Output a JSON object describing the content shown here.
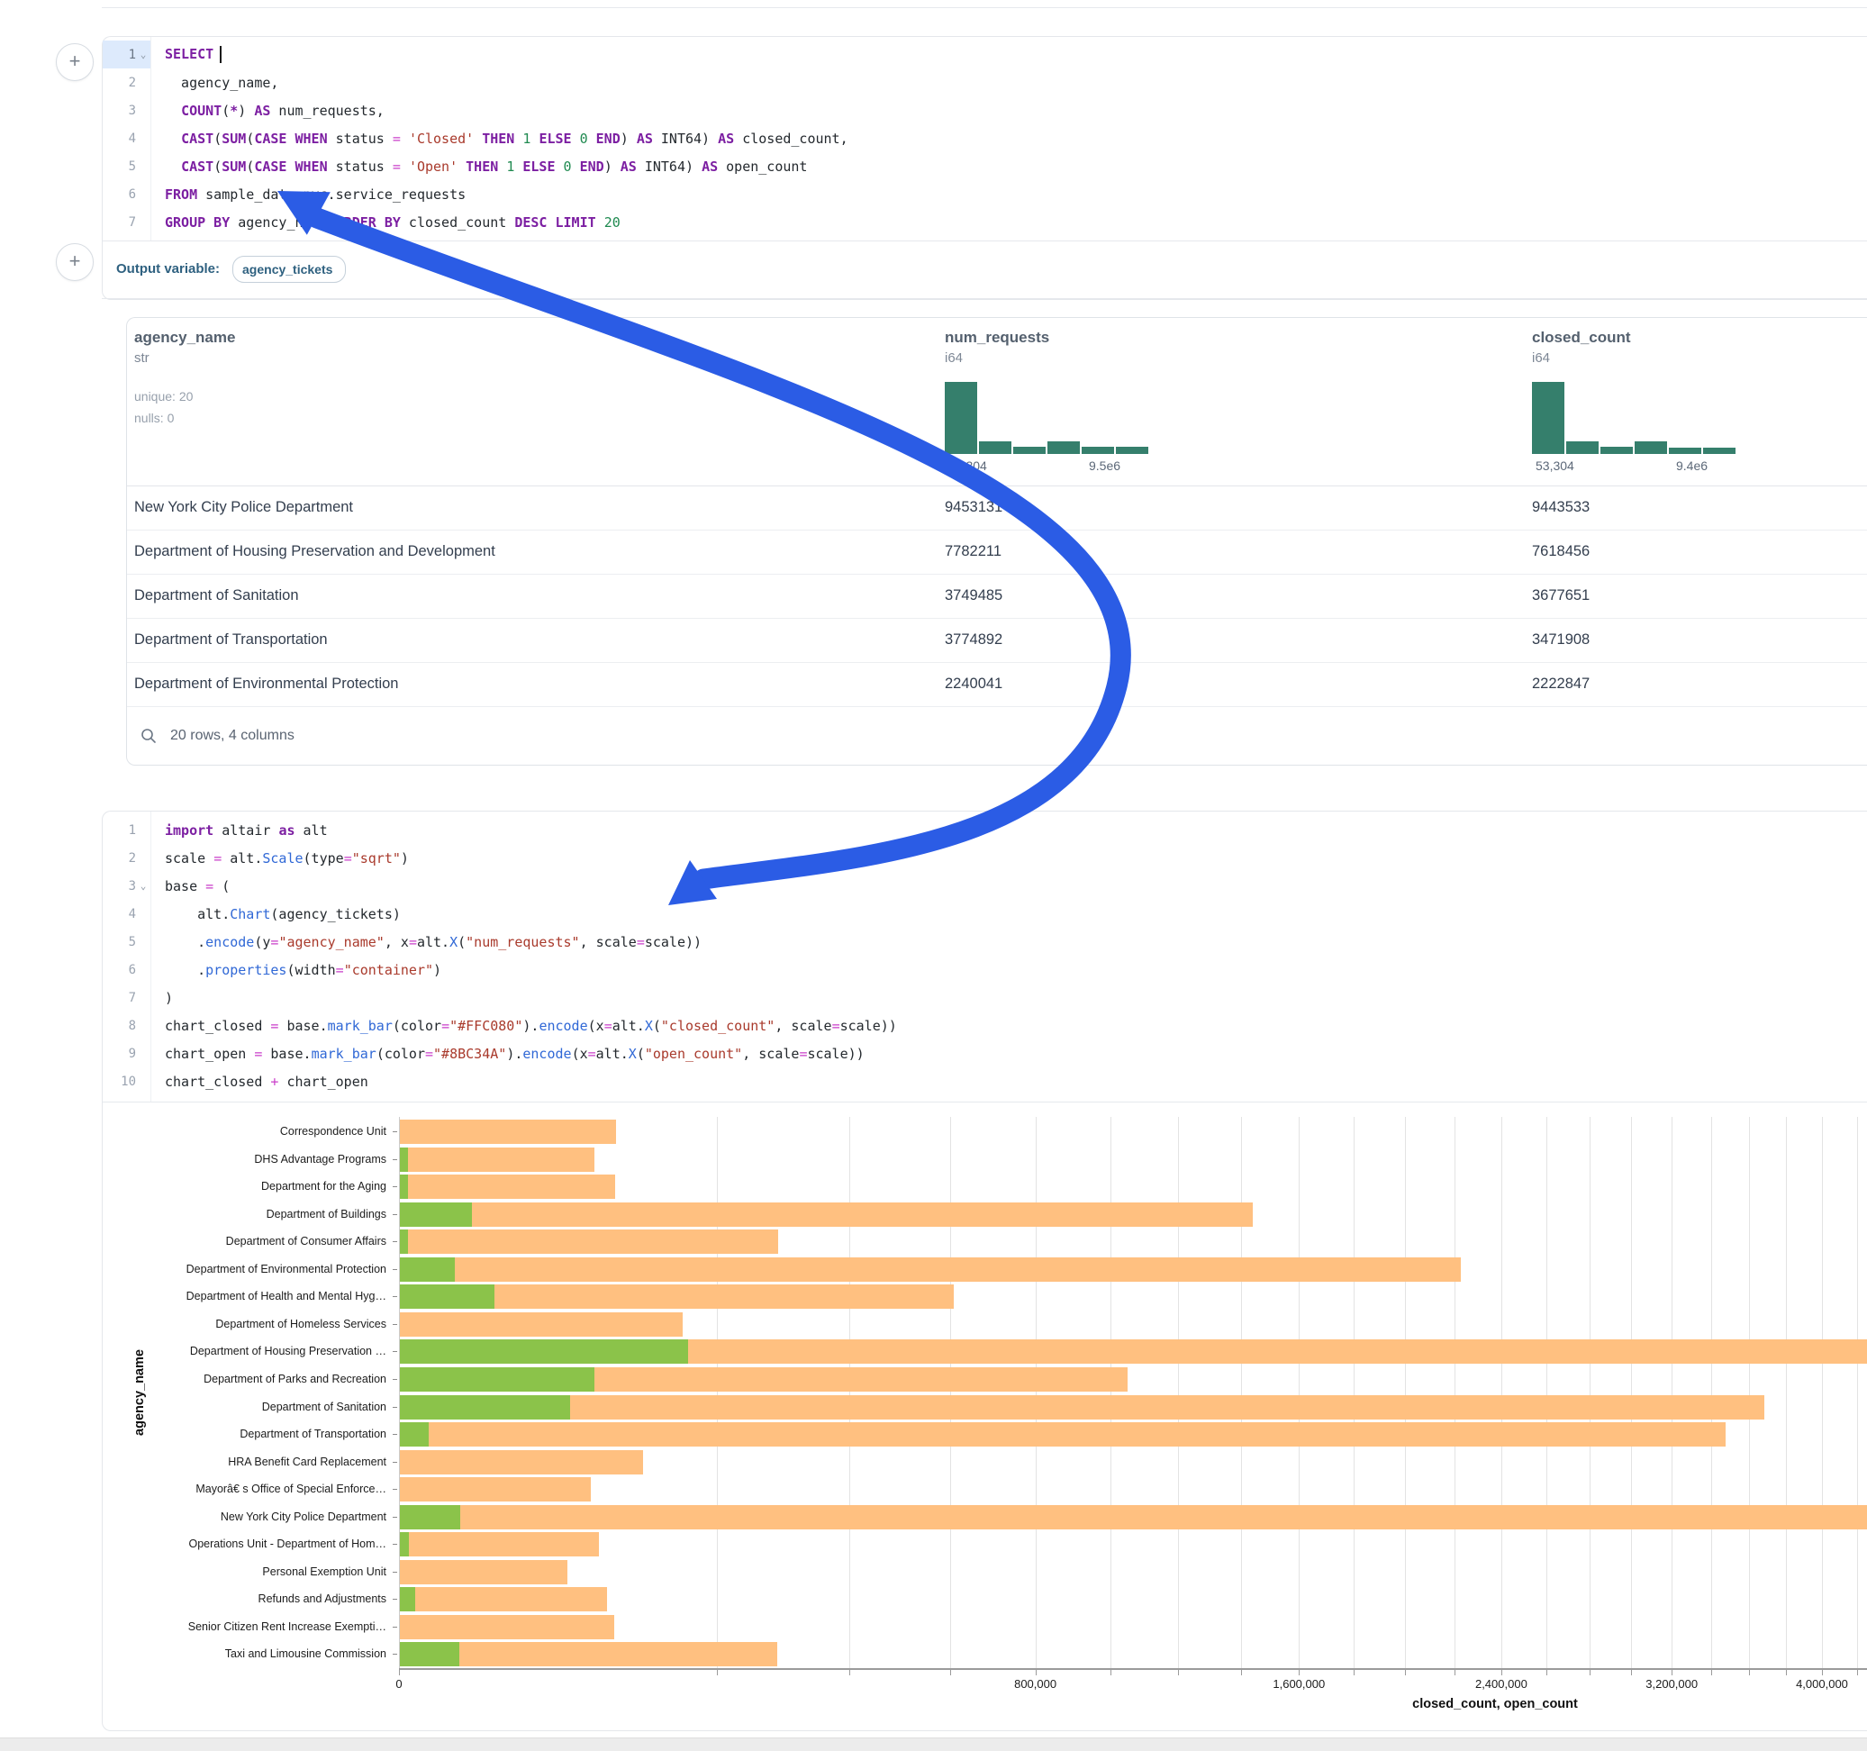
{
  "ui": {
    "add_cell_button": "+",
    "output_bar": {
      "label": "Output variable:",
      "pill": "agency_tickets"
    },
    "annotation_arrow_color": "#2b5ce5",
    "code_colors": {
      "keyword": "#7c1fa2",
      "operator": "#c93ec9",
      "string": "#a93a2c",
      "number": "#1f8a50",
      "function": "#3068d6",
      "plain": "#24292e"
    }
  },
  "sql_cell": {
    "lines": [
      {
        "n": "1",
        "fold": true,
        "active": true,
        "tokens": [
          {
            "c": "kw",
            "t": "SELECT"
          },
          {
            "c": "caret",
            "t": ""
          }
        ]
      },
      {
        "n": "2",
        "tokens": [
          {
            "c": "pl",
            "t": "  agency_name,"
          }
        ]
      },
      {
        "n": "3",
        "tokens": [
          {
            "c": "pl",
            "t": "  "
          },
          {
            "c": "kw",
            "t": "COUNT"
          },
          {
            "c": "pl",
            "t": "("
          },
          {
            "c": "kw",
            "t": "*"
          },
          {
            "c": "pl",
            "t": ") "
          },
          {
            "c": "kw",
            "t": "AS"
          },
          {
            "c": "pl",
            "t": " num_requests,"
          }
        ]
      },
      {
        "n": "4",
        "tokens": [
          {
            "c": "pl",
            "t": "  "
          },
          {
            "c": "kw",
            "t": "CAST"
          },
          {
            "c": "pl",
            "t": "("
          },
          {
            "c": "kw",
            "t": "SUM"
          },
          {
            "c": "pl",
            "t": "("
          },
          {
            "c": "kw",
            "t": "CASE WHEN"
          },
          {
            "c": "pl",
            "t": " status "
          },
          {
            "c": "op",
            "t": "="
          },
          {
            "c": "pl",
            "t": " "
          },
          {
            "c": "str",
            "t": "'Closed'"
          },
          {
            "c": "pl",
            "t": " "
          },
          {
            "c": "kw",
            "t": "THEN"
          },
          {
            "c": "pl",
            "t": " "
          },
          {
            "c": "num",
            "t": "1"
          },
          {
            "c": "pl",
            "t": " "
          },
          {
            "c": "kw",
            "t": "ELSE"
          },
          {
            "c": "pl",
            "t": " "
          },
          {
            "c": "num",
            "t": "0"
          },
          {
            "c": "pl",
            "t": " "
          },
          {
            "c": "kw",
            "t": "END"
          },
          {
            "c": "pl",
            "t": ") "
          },
          {
            "c": "kw",
            "t": "AS"
          },
          {
            "c": "pl",
            "t": " INT64) "
          },
          {
            "c": "kw",
            "t": "AS"
          },
          {
            "c": "pl",
            "t": " closed_count,"
          }
        ]
      },
      {
        "n": "5",
        "tokens": [
          {
            "c": "pl",
            "t": "  "
          },
          {
            "c": "kw",
            "t": "CAST"
          },
          {
            "c": "pl",
            "t": "("
          },
          {
            "c": "kw",
            "t": "SUM"
          },
          {
            "c": "pl",
            "t": "("
          },
          {
            "c": "kw",
            "t": "CASE WHEN"
          },
          {
            "c": "pl",
            "t": " status "
          },
          {
            "c": "op",
            "t": "="
          },
          {
            "c": "pl",
            "t": " "
          },
          {
            "c": "str",
            "t": "'Open'"
          },
          {
            "c": "pl",
            "t": " "
          },
          {
            "c": "kw",
            "t": "THEN"
          },
          {
            "c": "pl",
            "t": " "
          },
          {
            "c": "num",
            "t": "1"
          },
          {
            "c": "pl",
            "t": " "
          },
          {
            "c": "kw",
            "t": "ELSE"
          },
          {
            "c": "pl",
            "t": " "
          },
          {
            "c": "num",
            "t": "0"
          },
          {
            "c": "pl",
            "t": " "
          },
          {
            "c": "kw",
            "t": "END"
          },
          {
            "c": "pl",
            "t": ") "
          },
          {
            "c": "kw",
            "t": "AS"
          },
          {
            "c": "pl",
            "t": " INT64) "
          },
          {
            "c": "kw",
            "t": "AS"
          },
          {
            "c": "pl",
            "t": " open_count"
          }
        ]
      },
      {
        "n": "6",
        "tokens": [
          {
            "c": "kw",
            "t": "FROM"
          },
          {
            "c": "pl",
            "t": " sample_data.nyc.service_requests"
          }
        ]
      },
      {
        "n": "7",
        "tokens": [
          {
            "c": "kw",
            "t": "GROUP BY"
          },
          {
            "c": "pl",
            "t": " agency_name "
          },
          {
            "c": "kw",
            "t": "ORDER BY"
          },
          {
            "c": "pl",
            "t": " closed_count "
          },
          {
            "c": "kw",
            "t": "DESC"
          },
          {
            "c": "pl",
            "t": " "
          },
          {
            "c": "kw",
            "t": "LIMIT"
          },
          {
            "c": "pl",
            "t": " "
          },
          {
            "c": "num",
            "t": "20"
          }
        ]
      }
    ]
  },
  "table": {
    "columns": [
      {
        "name": "agency_name",
        "type": "str",
        "stats": [
          "unique: 20",
          "nulls: 0"
        ],
        "x": 8
      },
      {
        "name": "num_requests",
        "type": "i64",
        "hist": [
          1,
          0.18,
          0.1,
          0.17,
          0.1,
          0.1
        ],
        "hist_min": "53,304",
        "hist_max": "9.5e6",
        "x": 908
      },
      {
        "name": "closed_count",
        "type": "i64",
        "hist": [
          1,
          0.17,
          0.1,
          0.17,
          0.09,
          0.09
        ],
        "hist_min": "53,304",
        "hist_max": "9.4e6",
        "x": 1560
      }
    ],
    "hist_color": "#357f6c",
    "rows": [
      [
        "New York City Police Department",
        "9453131",
        "9443533"
      ],
      [
        "Department of Housing Preservation and Development",
        "7782211",
        "7618456"
      ],
      [
        "Department of Sanitation",
        "3749485",
        "3677651"
      ],
      [
        "Department of Transportation",
        "3774892",
        "3471908"
      ],
      [
        "Department of Environmental Protection",
        "2240041",
        "2222847"
      ]
    ],
    "footer": "20 rows, 4 columns"
  },
  "python_cell": {
    "lines": [
      {
        "n": "1",
        "tokens": [
          {
            "c": "kw",
            "t": "import"
          },
          {
            "c": "pl",
            "t": " altair "
          },
          {
            "c": "kw",
            "t": "as"
          },
          {
            "c": "pl",
            "t": " alt"
          }
        ]
      },
      {
        "n": "2",
        "tokens": [
          {
            "c": "pl",
            "t": "scale "
          },
          {
            "c": "op",
            "t": "="
          },
          {
            "c": "pl",
            "t": " alt."
          },
          {
            "c": "fn",
            "t": "Scale"
          },
          {
            "c": "pl",
            "t": "(type"
          },
          {
            "c": "op",
            "t": "="
          },
          {
            "c": "str",
            "t": "\"sqrt\""
          },
          {
            "c": "pl",
            "t": ")"
          }
        ]
      },
      {
        "n": "3",
        "fold": true,
        "tokens": [
          {
            "c": "pl",
            "t": "base "
          },
          {
            "c": "op",
            "t": "="
          },
          {
            "c": "pl",
            "t": " ("
          }
        ]
      },
      {
        "n": "4",
        "tokens": [
          {
            "c": "pl",
            "t": "    alt."
          },
          {
            "c": "fn",
            "t": "Chart"
          },
          {
            "c": "pl",
            "t": "(agency_tickets)"
          }
        ]
      },
      {
        "n": "5",
        "tokens": [
          {
            "c": "pl",
            "t": "    ."
          },
          {
            "c": "fn",
            "t": "encode"
          },
          {
            "c": "pl",
            "t": "(y"
          },
          {
            "c": "op",
            "t": "="
          },
          {
            "c": "str",
            "t": "\"agency_name\""
          },
          {
            "c": "pl",
            "t": ", x"
          },
          {
            "c": "op",
            "t": "="
          },
          {
            "c": "pl",
            "t": "alt."
          },
          {
            "c": "fn",
            "t": "X"
          },
          {
            "c": "pl",
            "t": "("
          },
          {
            "c": "str",
            "t": "\"num_requests\""
          },
          {
            "c": "pl",
            "t": ", scale"
          },
          {
            "c": "op",
            "t": "="
          },
          {
            "c": "pl",
            "t": "scale))"
          }
        ]
      },
      {
        "n": "6",
        "tokens": [
          {
            "c": "pl",
            "t": "    ."
          },
          {
            "c": "fn",
            "t": "properties"
          },
          {
            "c": "pl",
            "t": "(width"
          },
          {
            "c": "op",
            "t": "="
          },
          {
            "c": "str",
            "t": "\"container\""
          },
          {
            "c": "pl",
            "t": ")"
          }
        ]
      },
      {
        "n": "7",
        "tokens": [
          {
            "c": "pl",
            "t": ")"
          }
        ]
      },
      {
        "n": "8",
        "tokens": [
          {
            "c": "pl",
            "t": "chart_closed "
          },
          {
            "c": "op",
            "t": "="
          },
          {
            "c": "pl",
            "t": " base."
          },
          {
            "c": "fn",
            "t": "mark_bar"
          },
          {
            "c": "pl",
            "t": "(color"
          },
          {
            "c": "op",
            "t": "="
          },
          {
            "c": "str",
            "t": "\"#FFC080\""
          },
          {
            "c": "pl",
            "t": ")."
          },
          {
            "c": "fn",
            "t": "encode"
          },
          {
            "c": "pl",
            "t": "(x"
          },
          {
            "c": "op",
            "t": "="
          },
          {
            "c": "pl",
            "t": "alt."
          },
          {
            "c": "fn",
            "t": "X"
          },
          {
            "c": "pl",
            "t": "("
          },
          {
            "c": "str",
            "t": "\"closed_count\""
          },
          {
            "c": "pl",
            "t": ", scale"
          },
          {
            "c": "op",
            "t": "="
          },
          {
            "c": "pl",
            "t": "scale))"
          }
        ]
      },
      {
        "n": "9",
        "tokens": [
          {
            "c": "pl",
            "t": "chart_open "
          },
          {
            "c": "op",
            "t": "="
          },
          {
            "c": "pl",
            "t": " base."
          },
          {
            "c": "fn",
            "t": "mark_bar"
          },
          {
            "c": "pl",
            "t": "(color"
          },
          {
            "c": "op",
            "t": "="
          },
          {
            "c": "str",
            "t": "\"#8BC34A\""
          },
          {
            "c": "pl",
            "t": ")."
          },
          {
            "c": "fn",
            "t": "encode"
          },
          {
            "c": "pl",
            "t": "(x"
          },
          {
            "c": "op",
            "t": "="
          },
          {
            "c": "pl",
            "t": "alt."
          },
          {
            "c": "fn",
            "t": "X"
          },
          {
            "c": "pl",
            "t": "("
          },
          {
            "c": "str",
            "t": "\"open_count\""
          },
          {
            "c": "pl",
            "t": ", scale"
          },
          {
            "c": "op",
            "t": "="
          },
          {
            "c": "pl",
            "t": "scale))"
          }
        ]
      },
      {
        "n": "10",
        "tokens": [
          {
            "c": "pl",
            "t": "chart_closed "
          },
          {
            "c": "op",
            "t": "+"
          },
          {
            "c": "pl",
            "t": " chart_open"
          }
        ]
      }
    ]
  },
  "chart_data": {
    "type": "bar",
    "orientation": "horizontal",
    "x_scale": "sqrt",
    "xlabel": "closed_count, open_count",
    "ylabel": "agency_name",
    "legend": "none",
    "grid": true,
    "x_tick_values": [
      0,
      800000,
      1600000,
      2400000,
      3200000,
      4000000
    ],
    "x_tick_labels": [
      "0",
      "800,000",
      "1,600,000",
      "2,400,000",
      "3,200,000",
      "4,000,000"
    ],
    "gridline_step": 200000,
    "gridline_max": 4200000,
    "colors": {
      "closed_count": "#FFC080",
      "open_count": "#8BC34A"
    },
    "categories": [
      "Correspondence Unit",
      "DHS Advantage Programs",
      "Department for the Aging",
      "Department of Buildings",
      "Department of Consumer Affairs",
      "Department of Environmental Protection",
      "Department of Health and Mental Hyg…",
      "Department of Homeless Services",
      "Department of Housing Preservation …",
      "Department of Parks and Recreation",
      "Department of Sanitation",
      "Department of Transportation",
      "HRA Benefit Card Replacement",
      "Mayorâ€ s Office of Special Enforce…",
      "New York City Police Department",
      "Operations Unit - Department of Hom…",
      "Personal Exemption Unit",
      "Refunds and Adjustments",
      "Senior Citizen Rent Increase Exempti…",
      "Taxi and Limousine Commission"
    ],
    "series": [
      {
        "name": "closed_count",
        "values": [
          92000,
          75000,
          91500,
          1437000,
          283000,
          2222847,
          606000,
          158000,
          7618456,
          1046000,
          3677651,
          3471908,
          116400,
          72000,
          9443533,
          78000,
          55300,
          84900,
          90600,
          281200
        ]
      },
      {
        "name": "open_count",
        "values": [
          0,
          120,
          120,
          10300,
          120,
          6000,
          17700,
          0,
          163755,
          74700,
          57200,
          1630,
          0,
          0,
          7100,
          160,
          0,
          460,
          0,
          7000
        ]
      }
    ]
  }
}
